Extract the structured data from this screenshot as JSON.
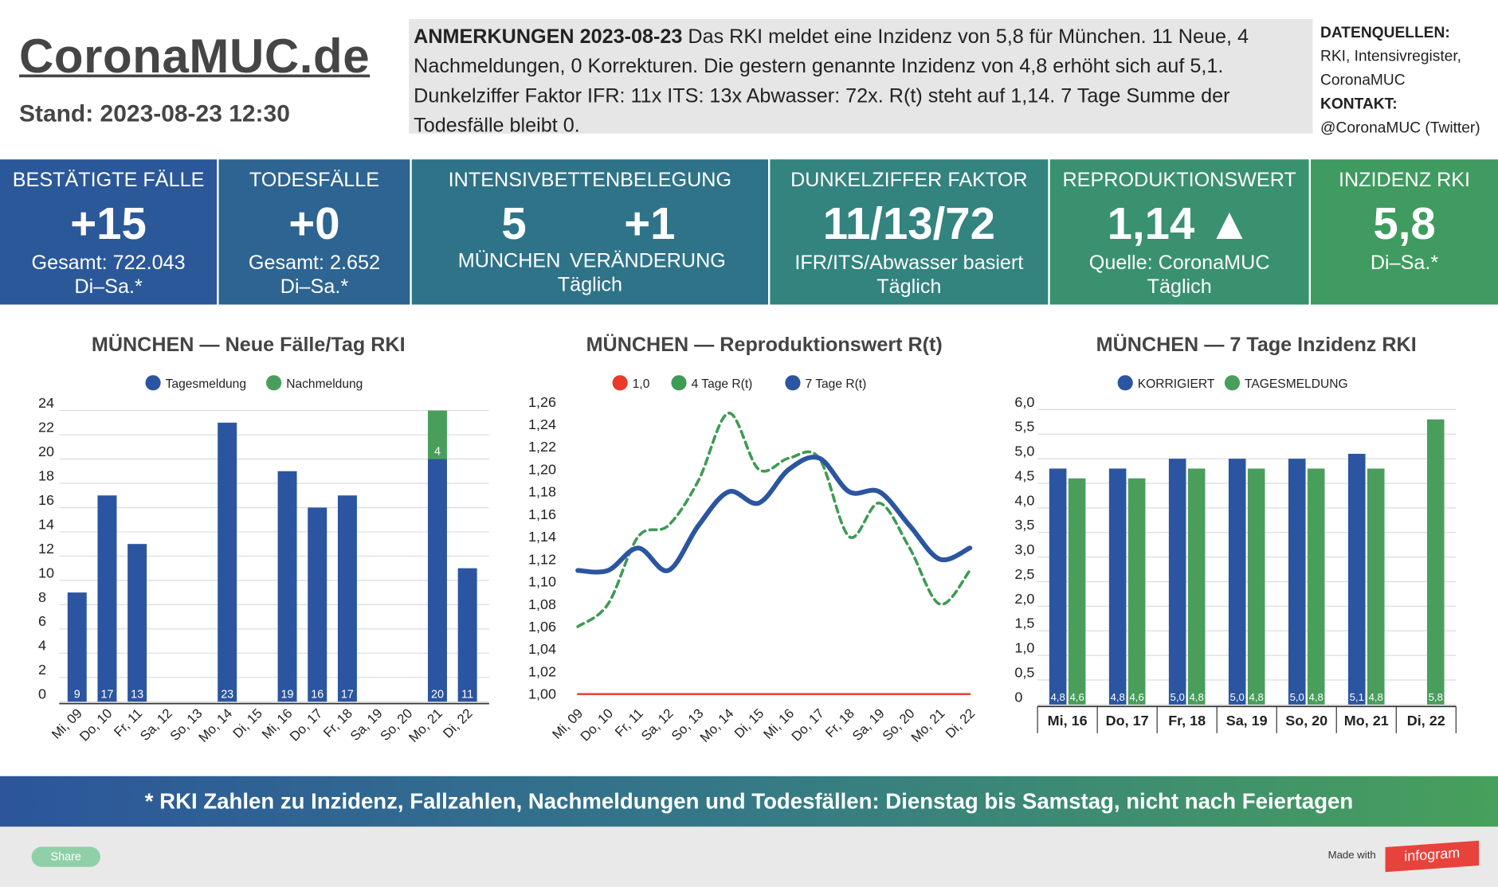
{
  "header": {
    "title": "CoronaMUC.de",
    "stand": "Stand: 2023-08-23 12:30",
    "notes_label": "ANMERKUNGEN 2023-08-23",
    "notes": "Das RKI meldet eine Inzidenz von 5,8 für München. 11 Neue, 4 Nachmeldungen, 0 Korrekturen. Die gestern genannte Inzidenz von 4,8 erhöht sich auf 5,1. Dunkelziffer Faktor IFR: 11x ITS: 13x Abwasser: 72x. R(t) steht auf 1,14. 7 Tage Summe der Todesfälle bleibt 0.",
    "sources_label": "DATENQUELLEN:",
    "sources": "RKI, Intensivregister, CoronaMUC",
    "contact_label": "KONTAKT:",
    "contact": "@CoronaMUC (Twitter)"
  },
  "cards": [
    {
      "title": "BESTÄTIGTE FÄLLE",
      "value": "+15",
      "lines": [
        "Gesamt: 722.043",
        "Di–Sa.*"
      ]
    },
    {
      "title": "TODESFÄLLE",
      "value": "+0",
      "lines": [
        "Gesamt: 2.652",
        "Di–Sa.*"
      ]
    },
    {
      "title": "INTENSIVBETTENBELEGUNG",
      "values": [
        "5",
        "+1"
      ],
      "sublabels": [
        "MÜNCHEN",
        "VERÄNDERUNG"
      ],
      "lines": [
        "Täglich"
      ]
    },
    {
      "title": "DUNKELZIFFER FAKTOR",
      "value": "11/13/72",
      "lines": [
        "IFR/ITS/Abwasser basiert",
        "Täglich"
      ]
    },
    {
      "title": "REPRODUKTIONSWERT",
      "value": "1,14 ▲",
      "lines": [
        "Quelle: CoronaMUC",
        "Täglich"
      ]
    },
    {
      "title": "INZIDENZ RKI",
      "value": "5,8",
      "lines": [
        "Di–Sa.*"
      ]
    }
  ],
  "chart_data": [
    {
      "type": "bar",
      "stacked": true,
      "title": "MÜNCHEN — Neue Fälle/Tag RKI",
      "categories": [
        "Mi, 09",
        "Do, 10",
        "Fr, 11",
        "Sa, 12",
        "So, 13",
        "Mo, 14",
        "Di, 15",
        "Mi, 16",
        "Do, 17",
        "Fr, 18",
        "Sa, 19",
        "So, 20",
        "Mo, 21",
        "Di, 22"
      ],
      "series": [
        {
          "name": "Tagesmeldung",
          "color": "#2b55a0",
          "values": [
            9,
            17,
            13,
            null,
            null,
            23,
            null,
            19,
            16,
            17,
            null,
            null,
            20,
            11
          ]
        },
        {
          "name": "Nachmeldung",
          "color": "#4a9e5c",
          "values": [
            null,
            null,
            null,
            null,
            null,
            null,
            null,
            null,
            null,
            null,
            null,
            null,
            4,
            null
          ]
        }
      ],
      "ylim": [
        0,
        24
      ],
      "yticks": [
        0,
        2,
        4,
        6,
        8,
        10,
        12,
        14,
        16,
        18,
        20,
        22,
        24
      ],
      "grid": true
    },
    {
      "type": "line",
      "title": "MÜNCHEN — Reproduktionswert R(t)",
      "categories": [
        "Mi, 09",
        "Do, 10",
        "Fr, 11",
        "Sa, 12",
        "So, 13",
        "Mo, 14",
        "Di, 15",
        "Mi, 16",
        "Do, 17",
        "Fr, 18",
        "Sa, 19",
        "So, 20",
        "Mo, 21",
        "Di, 22"
      ],
      "series": [
        {
          "name": "1,0",
          "color": "#e8392b",
          "line_style": "solid",
          "values": [
            1.0,
            1.0,
            1.0,
            1.0,
            1.0,
            1.0,
            1.0,
            1.0,
            1.0,
            1.0,
            1.0,
            1.0,
            1.0,
            1.0
          ]
        },
        {
          "name": "4 Tage R(t)",
          "color": "#3f9a55",
          "line_style": "dashed",
          "values": [
            1.06,
            1.08,
            1.14,
            1.15,
            1.19,
            1.25,
            1.2,
            1.21,
            1.21,
            1.14,
            1.17,
            1.13,
            1.08,
            1.11
          ]
        },
        {
          "name": "7 Tage R(t)",
          "color": "#2b55a0",
          "line_style": "solid",
          "values": [
            1.11,
            1.11,
            1.13,
            1.11,
            1.15,
            1.18,
            1.17,
            1.2,
            1.21,
            1.18,
            1.18,
            1.15,
            1.12,
            1.13
          ]
        }
      ],
      "ylim": [
        1.0,
        1.26
      ],
      "yticks": [
        {
          "value": 1.0,
          "label": "1,00"
        },
        {
          "value": 1.02,
          "label": "1,02"
        },
        {
          "value": 1.04,
          "label": "1,04"
        },
        {
          "value": 1.06,
          "label": "1,06"
        },
        {
          "value": 1.08,
          "label": "1,08"
        },
        {
          "value": 1.1,
          "label": "1,10"
        },
        {
          "value": 1.12,
          "label": "1,12"
        },
        {
          "value": 1.14,
          "label": "1,14"
        },
        {
          "value": 1.16,
          "label": "1,16"
        },
        {
          "value": 1.18,
          "label": "1,18"
        },
        {
          "value": 1.2,
          "label": "1,20"
        },
        {
          "value": 1.22,
          "label": "1,22"
        },
        {
          "value": 1.24,
          "label": "1,24"
        },
        {
          "value": 1.26,
          "label": "1,26"
        }
      ],
      "grid": false
    },
    {
      "type": "bar",
      "stacked": false,
      "title": "MÜNCHEN — 7 Tage Inzidenz RKI",
      "categories": [
        "Mi, 16",
        "Do, 17",
        "Fr, 18",
        "Sa, 19",
        "So, 20",
        "Mo, 21",
        "Di, 22"
      ],
      "series": [
        {
          "name": "KORRIGIERT",
          "color": "#2b55a0",
          "values": [
            4.8,
            4.8,
            5.0,
            5.0,
            5.0,
            5.1,
            null
          ],
          "value_labels": [
            "4,8",
            "4,8",
            "5,0",
            "5,0",
            "5,0",
            "5,1",
            null
          ]
        },
        {
          "name": "TAGESMELDUNG",
          "color": "#4a9e5c",
          "values": [
            4.6,
            4.6,
            4.8,
            4.8,
            4.8,
            4.8,
            5.8
          ],
          "value_labels": [
            "4,6",
            "4,6",
            "4,8",
            "4,8",
            "4,8",
            "4,8",
            "5,8"
          ]
        }
      ],
      "ylim": [
        0,
        6
      ],
      "yticks": [
        0,
        {
          "value": 0.5,
          "label": "0,5"
        },
        {
          "value": 1.0,
          "label": "1,0"
        },
        {
          "value": 1.5,
          "label": "1,5"
        },
        {
          "value": 2.0,
          "label": "2,0"
        },
        {
          "value": 2.5,
          "label": "2,5"
        },
        {
          "value": 3.0,
          "label": "3,0"
        },
        {
          "value": 3.5,
          "label": "3,5"
        },
        {
          "value": 4.0,
          "label": "4,0"
        },
        {
          "value": 4.5,
          "label": "4,5"
        },
        {
          "value": 5.0,
          "label": "5,0"
        },
        {
          "value": 5.5,
          "label": "5,5"
        },
        {
          "value": 6.0,
          "label": "6,0"
        }
      ],
      "grid": true
    }
  ],
  "footer": {
    "note": "* RKI Zahlen zu Inzidenz, Fallzahlen, Nachmeldungen und Todesfällen: Dienstag bis Samstag, nicht nach Feiertagen",
    "share": "Share",
    "made_with": "Made with",
    "brand": "infogram"
  }
}
